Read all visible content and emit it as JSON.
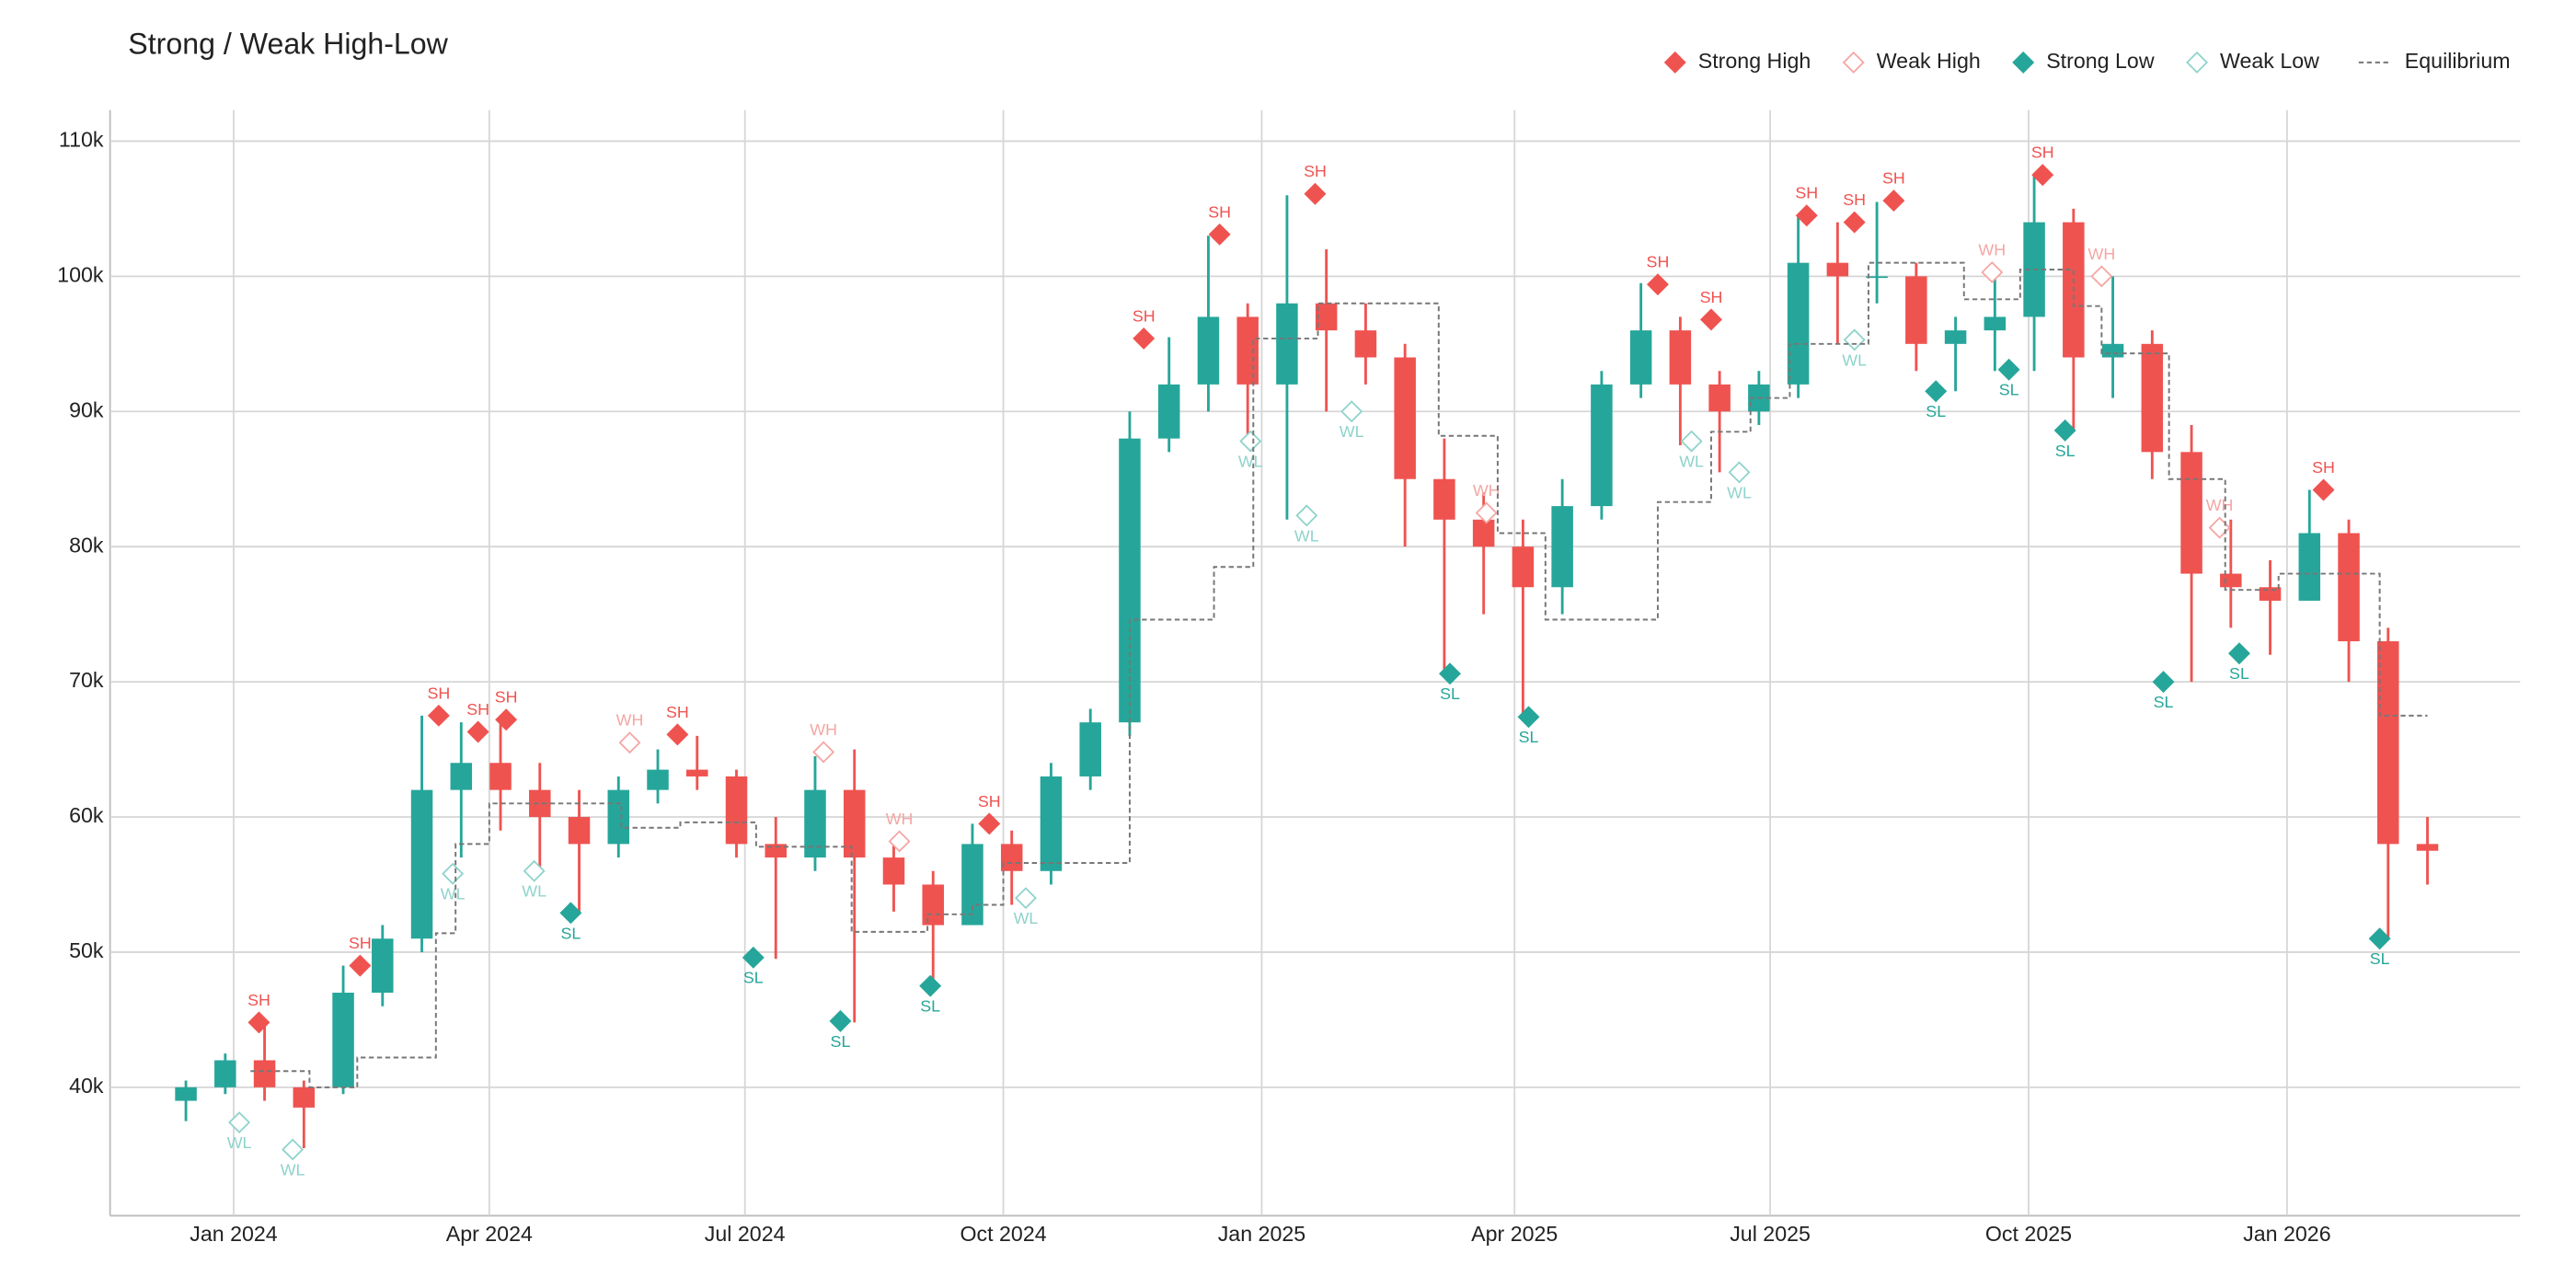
{
  "chart_data": {
    "type": "candlestick",
    "title": "Strong / Weak High-Low",
    "x": [
      "2023-12-15",
      "2023-12-29",
      "2024-01-12",
      "2024-01-26",
      "2024-02-09",
      "2024-02-23",
      "2024-03-08",
      "2024-03-22",
      "2024-04-05",
      "2024-04-19",
      "2024-05-03",
      "2024-05-17",
      "2024-05-31",
      "2024-06-14",
      "2024-06-28",
      "2024-07-12",
      "2024-07-26",
      "2024-08-09",
      "2024-08-23",
      "2024-09-06",
      "2024-09-20",
      "2024-10-04",
      "2024-10-18",
      "2024-11-01",
      "2024-11-15",
      "2024-11-29",
      "2024-12-13",
      "2024-12-27",
      "2025-01-10",
      "2025-01-24",
      "2025-02-07",
      "2025-02-21",
      "2025-03-07",
      "2025-03-21",
      "2025-04-04",
      "2025-04-18",
      "2025-05-02",
      "2025-05-16",
      "2025-05-30",
      "2025-06-13",
      "2025-06-27",
      "2025-07-11",
      "2025-07-25",
      "2025-08-08",
      "2025-08-22",
      "2025-09-05",
      "2025-09-19",
      "2025-10-03",
      "2025-10-17",
      "2025-10-31",
      "2025-11-14",
      "2025-11-28",
      "2025-12-12",
      "2025-12-26",
      "2026-01-09",
      "2026-01-23",
      "2026-02-06",
      "2026-02-20"
    ],
    "open": [
      39000,
      40000,
      42000,
      40000,
      40000,
      47000,
      51000,
      62000,
      64000,
      62000,
      60000,
      58000,
      62000,
      63500,
      63000,
      58000,
      57000,
      62000,
      57000,
      55000,
      52000,
      58000,
      56000,
      63000,
      67000,
      88000,
      92000,
      97000,
      92000,
      98000,
      96000,
      94000,
      85000,
      82000,
      80000,
      77000,
      83000,
      92000,
      96000,
      92000,
      90000,
      92000,
      101000,
      100000,
      100000,
      95000,
      96000,
      97000,
      104000,
      94000,
      95000,
      87000,
      78000,
      77000,
      76000,
      81000,
      73000,
      58000
    ],
    "high": [
      40500,
      42500,
      44800,
      40500,
      49000,
      52000,
      67500,
      67000,
      67000,
      64000,
      62000,
      63000,
      65000,
      66000,
      63500,
      60000,
      64500,
      65000,
      58500,
      56000,
      59500,
      59000,
      64000,
      68000,
      90000,
      95500,
      103000,
      98000,
      106000,
      102000,
      98000,
      95000,
      88000,
      84000,
      82000,
      85000,
      93000,
      99500,
      97000,
      93000,
      93000,
      104500,
      104000,
      105500,
      101000,
      97000,
      100000,
      107500,
      105000,
      100000,
      96000,
      89000,
      82000,
      79000,
      84200,
      82000,
      74000,
      60000
    ],
    "low": [
      37500,
      39500,
      39000,
      35500,
      39500,
      46000,
      50000,
      57000,
      59000,
      56000,
      52800,
      57000,
      61000,
      62000,
      57000,
      49500,
      56000,
      44800,
      53000,
      47500,
      52000,
      53500,
      55000,
      62000,
      66000,
      87000,
      90000,
      88000,
      82000,
      90000,
      92000,
      80000,
      70500,
      75000,
      67400,
      75000,
      82000,
      91000,
      87500,
      85500,
      89000,
      91000,
      95000,
      98000,
      93000,
      91500,
      93000,
      93000,
      88500,
      91000,
      85000,
      70000,
      74000,
      72000,
      76000,
      70000,
      51000,
      55000
    ],
    "close": [
      40000,
      42000,
      40000,
      38500,
      47000,
      51000,
      62000,
      64000,
      62000,
      60000,
      58000,
      62000,
      63500,
      63000,
      58000,
      57000,
      62000,
      57000,
      55000,
      52000,
      58000,
      56000,
      63000,
      67000,
      88000,
      92000,
      97000,
      92000,
      98000,
      96000,
      94000,
      85000,
      82000,
      80000,
      77000,
      83000,
      92000,
      96000,
      92000,
      90000,
      92000,
      101000,
      100000,
      100000,
      95000,
      96000,
      97000,
      104000,
      94000,
      95000,
      87000,
      78000,
      77000,
      76000,
      81000,
      73000,
      58000,
      57500
    ],
    "up_color": "#26a69a",
    "down_color": "#ef5350",
    "series": [
      {
        "name": "Strong High",
        "label": "SH",
        "color": "#ef5350",
        "marker": "filled",
        "label_position": "above",
        "x": [
          "2024-01-10",
          "2024-02-15",
          "2024-03-14",
          "2024-03-28",
          "2024-04-07",
          "2024-06-07",
          "2024-09-26",
          "2024-11-20",
          "2024-12-17",
          "2025-01-20",
          "2025-05-22",
          "2025-06-10",
          "2025-07-14",
          "2025-07-31",
          "2025-08-14",
          "2025-10-06",
          "2026-01-14"
        ],
        "values": [
          44800,
          49000,
          67500,
          66300,
          67200,
          66100,
          59500,
          95400,
          103100,
          106100,
          99400,
          96800,
          104500,
          104000,
          105600,
          107500,
          84200
        ]
      },
      {
        "name": "Weak High",
        "label": "WH",
        "color": "#f4a6a4",
        "marker": "hollow",
        "label_position": "above",
        "x": [
          "2024-05-21",
          "2024-07-29",
          "2024-08-25",
          "2025-03-22",
          "2025-09-18",
          "2025-10-27",
          "2025-12-08"
        ],
        "values": [
          65500,
          64800,
          58200,
          82500,
          100300,
          100000,
          81400
        ]
      },
      {
        "name": "Strong Low",
        "label": "SL",
        "color": "#26a69a",
        "marker": "filled",
        "label_position": "below",
        "x": [
          "2024-04-30",
          "2024-07-04",
          "2024-08-04",
          "2024-09-05",
          "2025-03-09",
          "2025-04-06",
          "2025-08-29",
          "2025-09-24",
          "2025-10-14",
          "2025-11-18",
          "2025-12-15",
          "2026-02-03"
        ],
        "values": [
          52900,
          49600,
          44900,
          47500,
          70600,
          67400,
          91500,
          93100,
          88600,
          70000,
          72100,
          51000
        ]
      },
      {
        "name": "Weak Low",
        "label": "WL",
        "color": "#8fd3cc",
        "marker": "hollow",
        "label_position": "below",
        "x": [
          "2024-01-03",
          "2024-01-22",
          "2024-03-19",
          "2024-04-17",
          "2024-10-09",
          "2024-12-28",
          "2025-01-17",
          "2025-02-02",
          "2025-06-03",
          "2025-06-20",
          "2025-07-31"
        ],
        "values": [
          37400,
          35400,
          55800,
          56000,
          54000,
          87800,
          82300,
          90000,
          87800,
          85500,
          95300
        ]
      },
      {
        "name": "Equilibrium",
        "color": "#777777",
        "line": "dashed-step",
        "x": [
          "2024-01-07",
          "2024-01-28",
          "2024-02-14",
          "2024-03-13",
          "2024-03-20",
          "2024-04-01",
          "2024-05-18",
          "2024-06-08",
          "2024-07-05",
          "2024-08-08",
          "2024-09-04",
          "2024-09-20",
          "2024-10-01",
          "2024-11-15",
          "2024-12-15",
          "2024-12-29",
          "2025-01-21",
          "2025-03-05",
          "2025-03-26",
          "2025-04-12",
          "2025-05-22",
          "2025-06-10",
          "2025-06-24",
          "2025-07-08",
          "2025-08-05",
          "2025-09-08",
          "2025-09-28",
          "2025-10-17",
          "2025-10-27",
          "2025-11-20",
          "2025-12-10",
          "2025-12-29",
          "2026-02-03",
          "2026-02-20"
        ],
        "values": [
          41200,
          40000,
          42200,
          51400,
          58000,
          61000,
          59200,
          59600,
          57800,
          51500,
          52800,
          53500,
          56600,
          74600,
          78500,
          95400,
          98000,
          88200,
          81000,
          74600,
          83300,
          88500,
          91000,
          95000,
          101000,
          98300,
          100500,
          97800,
          94300,
          85000,
          76800,
          78000,
          67500,
          67500
        ]
      }
    ],
    "xlim": [
      "2023-11-18",
      "2026-03-25"
    ],
    "xticks": [
      {
        "value": "2024-01-01",
        "label": "Jan 2024"
      },
      {
        "value": "2024-04-01",
        "label": "Apr 2024"
      },
      {
        "value": "2024-07-01",
        "label": "Jul 2024"
      },
      {
        "value": "2024-10-01",
        "label": "Oct 2024"
      },
      {
        "value": "2025-01-01",
        "label": "Jan 2025"
      },
      {
        "value": "2025-04-01",
        "label": "Apr 2025"
      },
      {
        "value": "2025-07-01",
        "label": "Jul 2025"
      },
      {
        "value": "2025-10-01",
        "label": "Oct 2025"
      },
      {
        "value": "2026-01-01",
        "label": "Jan 2026"
      }
    ],
    "ylim": [
      30500,
      112300
    ],
    "yticks": [
      {
        "value": 40000,
        "label": "40k"
      },
      {
        "value": 50000,
        "label": "50k"
      },
      {
        "value": 60000,
        "label": "60k"
      },
      {
        "value": 70000,
        "label": "70k"
      },
      {
        "value": 80000,
        "label": "80k"
      },
      {
        "value": 90000,
        "label": "90k"
      },
      {
        "value": 100000,
        "label": "100k"
      },
      {
        "value": 110000,
        "label": "110k"
      }
    ],
    "grid": true,
    "legend": "top-right"
  }
}
